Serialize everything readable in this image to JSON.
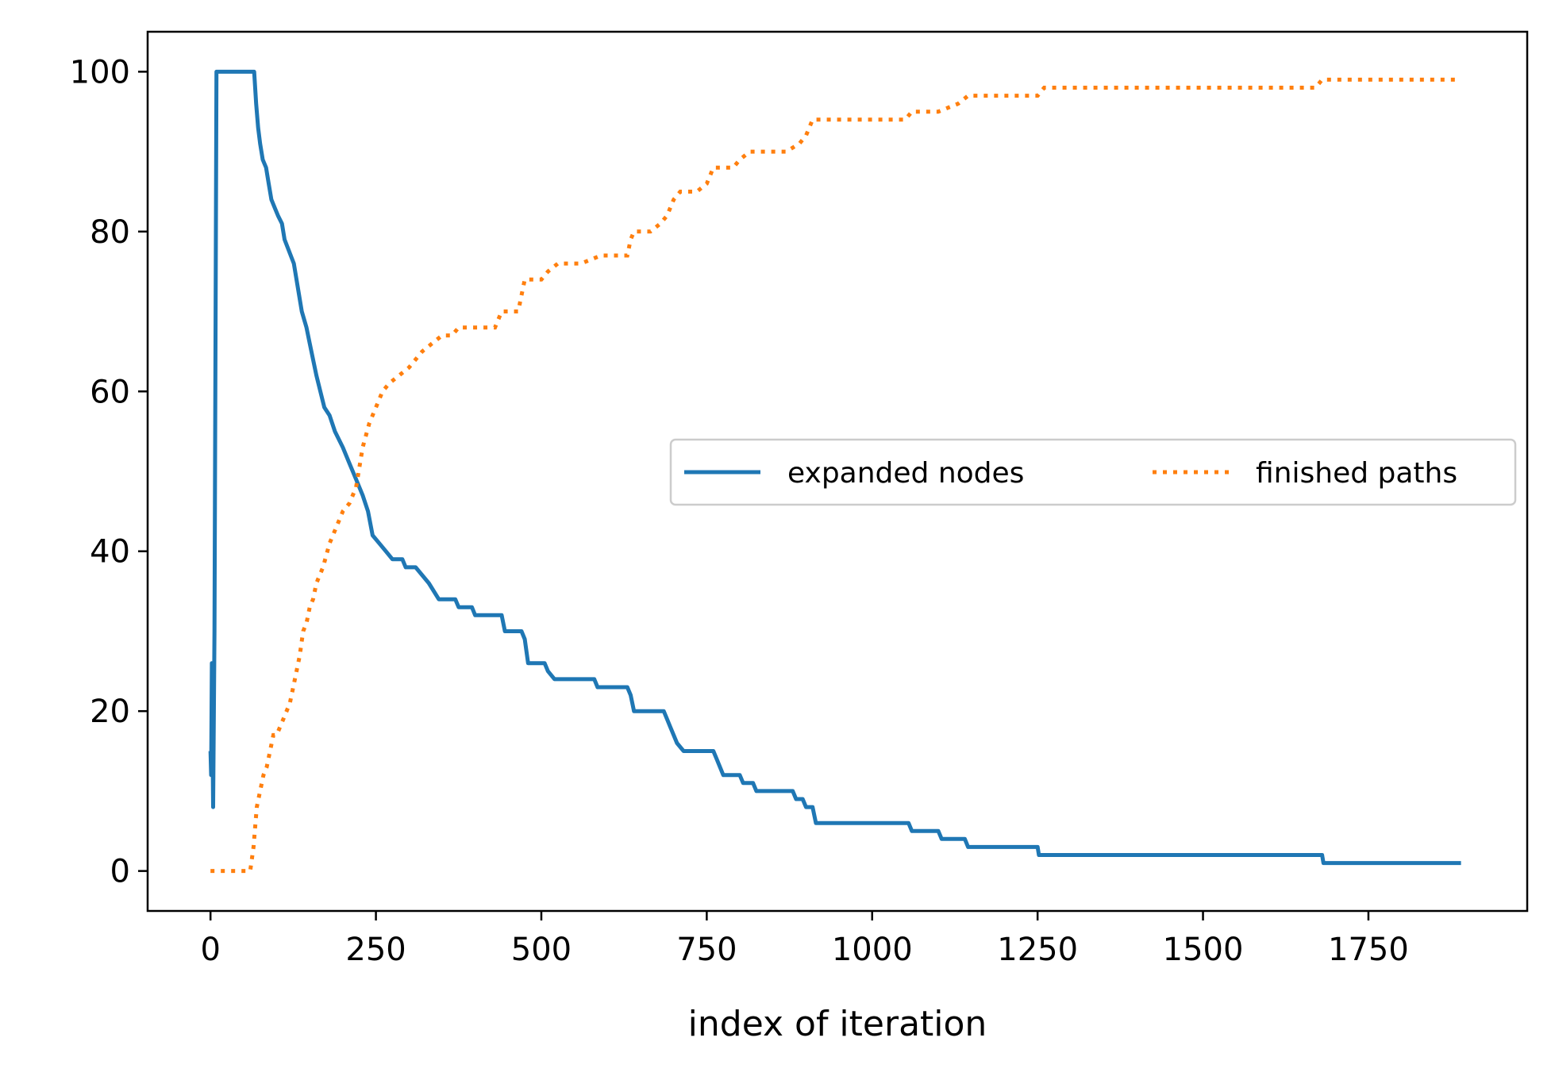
{
  "chart_data": {
    "type": "line",
    "title": "",
    "xlabel": "index of iteration",
    "ylabel": "",
    "xlim": [
      -95,
      1990
    ],
    "ylim": [
      -5,
      105
    ],
    "xticks": [
      0,
      250,
      500,
      750,
      1000,
      1250,
      1500,
      1750
    ],
    "yticks": [
      0,
      20,
      40,
      60,
      80,
      100
    ],
    "grid": false,
    "legend": {
      "placement": "center-right",
      "ncol": 2
    },
    "series": [
      {
        "name": "expanded nodes",
        "color": "#1f77b4",
        "style": "solid",
        "points": [
          [
            0,
            15
          ],
          [
            1,
            12
          ],
          [
            2,
            26
          ],
          [
            4,
            8
          ],
          [
            6,
            30
          ],
          [
            9,
            100
          ],
          [
            66,
            100
          ],
          [
            69,
            96
          ],
          [
            72,
            93
          ],
          [
            75,
            91
          ],
          [
            79,
            89
          ],
          [
            84,
            88
          ],
          [
            88,
            86
          ],
          [
            92,
            84
          ],
          [
            97,
            83
          ],
          [
            102,
            82
          ],
          [
            108,
            81
          ],
          [
            112,
            79
          ],
          [
            126,
            76
          ],
          [
            132,
            73
          ],
          [
            138,
            70
          ],
          [
            145,
            68
          ],
          [
            150,
            66
          ],
          [
            155,
            64
          ],
          [
            160,
            62
          ],
          [
            166,
            60
          ],
          [
            172,
            58
          ],
          [
            180,
            57
          ],
          [
            188,
            55
          ],
          [
            200,
            53
          ],
          [
            210,
            51
          ],
          [
            220,
            49
          ],
          [
            230,
            47
          ],
          [
            238,
            45
          ],
          [
            245,
            42
          ],
          [
            255,
            41
          ],
          [
            265,
            40
          ],
          [
            275,
            39
          ],
          [
            290,
            39
          ],
          [
            295,
            38
          ],
          [
            310,
            38
          ],
          [
            320,
            37
          ],
          [
            330,
            36
          ],
          [
            345,
            34
          ],
          [
            370,
            34
          ],
          [
            375,
            33
          ],
          [
            395,
            33
          ],
          [
            400,
            32
          ],
          [
            440,
            32
          ],
          [
            445,
            30
          ],
          [
            470,
            30
          ],
          [
            475,
            29
          ],
          [
            480,
            26
          ],
          [
            505,
            26
          ],
          [
            510,
            25
          ],
          [
            520,
            24
          ],
          [
            580,
            24
          ],
          [
            585,
            23
          ],
          [
            630,
            23
          ],
          [
            635,
            22
          ],
          [
            640,
            20
          ],
          [
            685,
            20
          ],
          [
            690,
            19
          ],
          [
            695,
            18
          ],
          [
            705,
            16
          ],
          [
            715,
            15
          ],
          [
            760,
            15
          ],
          [
            765,
            14
          ],
          [
            775,
            12
          ],
          [
            800,
            12
          ],
          [
            805,
            11
          ],
          [
            820,
            11
          ],
          [
            825,
            10
          ],
          [
            880,
            10
          ],
          [
            885,
            9
          ],
          [
            895,
            9
          ],
          [
            900,
            8
          ],
          [
            910,
            8
          ],
          [
            915,
            6
          ],
          [
            1055,
            6
          ],
          [
            1060,
            5
          ],
          [
            1100,
            5
          ],
          [
            1105,
            4
          ],
          [
            1140,
            4
          ],
          [
            1145,
            3
          ],
          [
            1250,
            3
          ],
          [
            1252,
            2
          ],
          [
            1680,
            2
          ],
          [
            1682,
            1
          ],
          [
            1890,
            1
          ]
        ]
      },
      {
        "name": "finished paths",
        "color": "#ff7f0e",
        "style": "dotted",
        "points": [
          [
            0,
            0
          ],
          [
            60,
            0
          ],
          [
            65,
            3
          ],
          [
            70,
            8
          ],
          [
            75,
            10
          ],
          [
            80,
            12
          ],
          [
            85,
            13
          ],
          [
            90,
            15
          ],
          [
            95,
            17
          ],
          [
            100,
            17
          ],
          [
            110,
            19
          ],
          [
            120,
            21
          ],
          [
            125,
            23
          ],
          [
            130,
            25
          ],
          [
            135,
            27
          ],
          [
            140,
            30
          ],
          [
            145,
            31
          ],
          [
            150,
            33
          ],
          [
            155,
            34
          ],
          [
            160,
            36
          ],
          [
            170,
            38
          ],
          [
            180,
            41
          ],
          [
            190,
            43
          ],
          [
            200,
            45
          ],
          [
            210,
            46
          ],
          [
            220,
            48
          ],
          [
            230,
            53
          ],
          [
            240,
            56
          ],
          [
            250,
            58
          ],
          [
            260,
            60
          ],
          [
            270,
            61
          ],
          [
            285,
            62
          ],
          [
            300,
            63
          ],
          [
            310,
            64
          ],
          [
            320,
            65
          ],
          [
            335,
            66
          ],
          [
            350,
            67
          ],
          [
            365,
            67
          ],
          [
            375,
            68
          ],
          [
            430,
            68
          ],
          [
            440,
            70
          ],
          [
            455,
            70
          ],
          [
            465,
            70
          ],
          [
            475,
            74
          ],
          [
            500,
            74
          ],
          [
            510,
            75
          ],
          [
            525,
            76
          ],
          [
            560,
            76
          ],
          [
            590,
            77
          ],
          [
            630,
            77
          ],
          [
            635,
            79
          ],
          [
            640,
            80
          ],
          [
            665,
            80
          ],
          [
            680,
            81
          ],
          [
            690,
            82
          ],
          [
            700,
            84
          ],
          [
            710,
            85
          ],
          [
            735,
            85
          ],
          [
            750,
            86
          ],
          [
            760,
            88
          ],
          [
            790,
            88
          ],
          [
            800,
            89
          ],
          [
            815,
            90
          ],
          [
            870,
            90
          ],
          [
            890,
            91
          ],
          [
            900,
            92
          ],
          [
            910,
            94
          ],
          [
            990,
            94
          ],
          [
            1050,
            94
          ],
          [
            1060,
            95
          ],
          [
            1100,
            95
          ],
          [
            1130,
            96
          ],
          [
            1145,
            97
          ],
          [
            1250,
            97
          ],
          [
            1260,
            98
          ],
          [
            1670,
            98
          ],
          [
            1680,
            99
          ],
          [
            1890,
            99
          ]
        ]
      }
    ]
  }
}
